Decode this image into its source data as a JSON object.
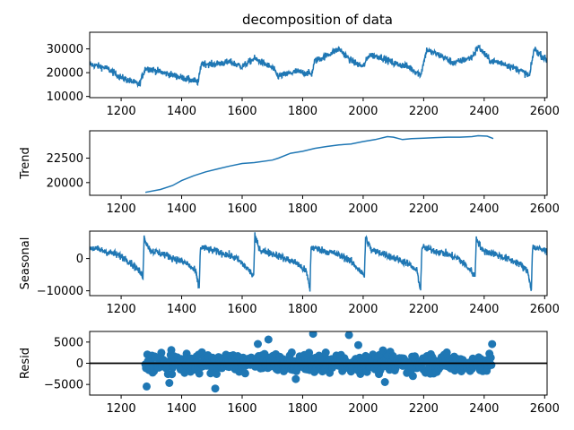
{
  "figure": {
    "title": "decomposition of data"
  },
  "chart_data": [
    {
      "type": "line",
      "panel": "observed",
      "ylabel": "",
      "xlim": [
        1096,
        2608
      ],
      "ylim": [
        9500,
        37000
      ],
      "x_ticks": [
        1200,
        1400,
        1600,
        1800,
        2000,
        2200,
        2400,
        2600
      ],
      "y_ticks": [
        10000,
        20000,
        30000
      ],
      "y_tick_labels": [
        "10000",
        "20000",
        "30000"
      ],
      "x_range": [
        1096,
        2608
      ],
      "approx_series": [
        [
          1096,
          23500
        ],
        [
          1150,
          22000
        ],
        [
          1200,
          18000
        ],
        [
          1260,
          15000
        ],
        [
          1280,
          22000
        ],
        [
          1340,
          20000
        ],
        [
          1400,
          18000
        ],
        [
          1455,
          16000
        ],
        [
          1465,
          24000
        ],
        [
          1500,
          23500
        ],
        [
          1560,
          24500
        ],
        [
          1600,
          22500
        ],
        [
          1640,
          26000
        ],
        [
          1700,
          22000
        ],
        [
          1720,
          18500
        ],
        [
          1780,
          20500
        ],
        [
          1830,
          19500
        ],
        [
          1840,
          25000
        ],
        [
          1860,
          26000
        ],
        [
          1920,
          30000
        ],
        [
          1960,
          25000
        ],
        [
          2000,
          22500
        ],
        [
          2020,
          27500
        ],
        [
          2060,
          26500
        ],
        [
          2100,
          24000
        ],
        [
          2150,
          22500
        ],
        [
          2190,
          19000
        ],
        [
          2210,
          29500
        ],
        [
          2260,
          27000
        ],
        [
          2300,
          24000
        ],
        [
          2360,
          26500
        ],
        [
          2380,
          31000
        ],
        [
          2420,
          25000
        ],
        [
          2460,
          24000
        ],
        [
          2520,
          21000
        ],
        [
          2550,
          18500
        ],
        [
          2565,
          30000
        ],
        [
          2608,
          25000
        ]
      ],
      "noise_amplitude": 2500
    },
    {
      "type": "line",
      "panel": "trend",
      "ylabel": "Trend",
      "xlim": [
        1096,
        2608
      ],
      "ylim": [
        18700,
        25300
      ],
      "x_ticks": [
        1200,
        1400,
        1600,
        1800,
        2000,
        2200,
        2400,
        2600
      ],
      "y_ticks": [
        20000,
        22500
      ],
      "y_tick_labels": [
        "20000",
        "22500"
      ],
      "points": [
        [
          1280,
          19000
        ],
        [
          1330,
          19300
        ],
        [
          1370,
          19700
        ],
        [
          1400,
          20200
        ],
        [
          1440,
          20700
        ],
        [
          1480,
          21100
        ],
        [
          1520,
          21400
        ],
        [
          1560,
          21700
        ],
        [
          1600,
          21950
        ],
        [
          1640,
          22050
        ],
        [
          1700,
          22300
        ],
        [
          1720,
          22500
        ],
        [
          1760,
          23000
        ],
        [
          1800,
          23200
        ],
        [
          1840,
          23500
        ],
        [
          1880,
          23700
        ],
        [
          1920,
          23850
        ],
        [
          1960,
          23950
        ],
        [
          2000,
          24200
        ],
        [
          2040,
          24400
        ],
        [
          2080,
          24700
        ],
        [
          2100,
          24650
        ],
        [
          2130,
          24400
        ],
        [
          2160,
          24500
        ],
        [
          2200,
          24550
        ],
        [
          2240,
          24600
        ],
        [
          2280,
          24650
        ],
        [
          2320,
          24650
        ],
        [
          2360,
          24700
        ],
        [
          2380,
          24800
        ],
        [
          2410,
          24750
        ],
        [
          2430,
          24500
        ]
      ]
    },
    {
      "type": "line",
      "panel": "seasonal",
      "ylabel": "Seasonal",
      "xlim": [
        1096,
        2608
      ],
      "ylim": [
        -11500,
        8500
      ],
      "x_ticks": [
        1200,
        1400,
        1600,
        1800,
        2000,
        2200,
        2400,
        2600
      ],
      "y_ticks": [
        -10000,
        0
      ],
      "y_tick_labels": [
        "−10000",
        "0"
      ],
      "period": 366,
      "approx_cycle_start": 1096,
      "approx_cycle_shape": [
        [
          0,
          3500
        ],
        [
          40,
          2500
        ],
        [
          80,
          1500
        ],
        [
          120,
          0
        ],
        [
          160,
          -3500
        ],
        [
          176,
          -5500
        ],
        [
          180,
          6500
        ],
        [
          200,
          2500
        ],
        [
          240,
          1500
        ],
        [
          280,
          0
        ],
        [
          320,
          -1500
        ],
        [
          350,
          -4000
        ],
        [
          362,
          -9500
        ],
        [
          366,
          3500
        ]
      ],
      "noise_amplitude": 2000
    },
    {
      "type": "scatter",
      "panel": "resid",
      "ylabel": "Resid",
      "xlim": [
        1096,
        2608
      ],
      "ylim": [
        -7500,
        7500
      ],
      "x_ticks": [
        1200,
        1400,
        1600,
        1800,
        2000,
        2200,
        2400,
        2600
      ],
      "y_ticks": [
        -5000,
        0,
        5000
      ],
      "y_tick_labels": [
        "−5000",
        "0",
        "5000"
      ],
      "x_range": [
        1280,
        2428
      ],
      "baseline": 0,
      "spread": 3000,
      "extreme_range": [
        -6500,
        7000
      ]
    }
  ]
}
